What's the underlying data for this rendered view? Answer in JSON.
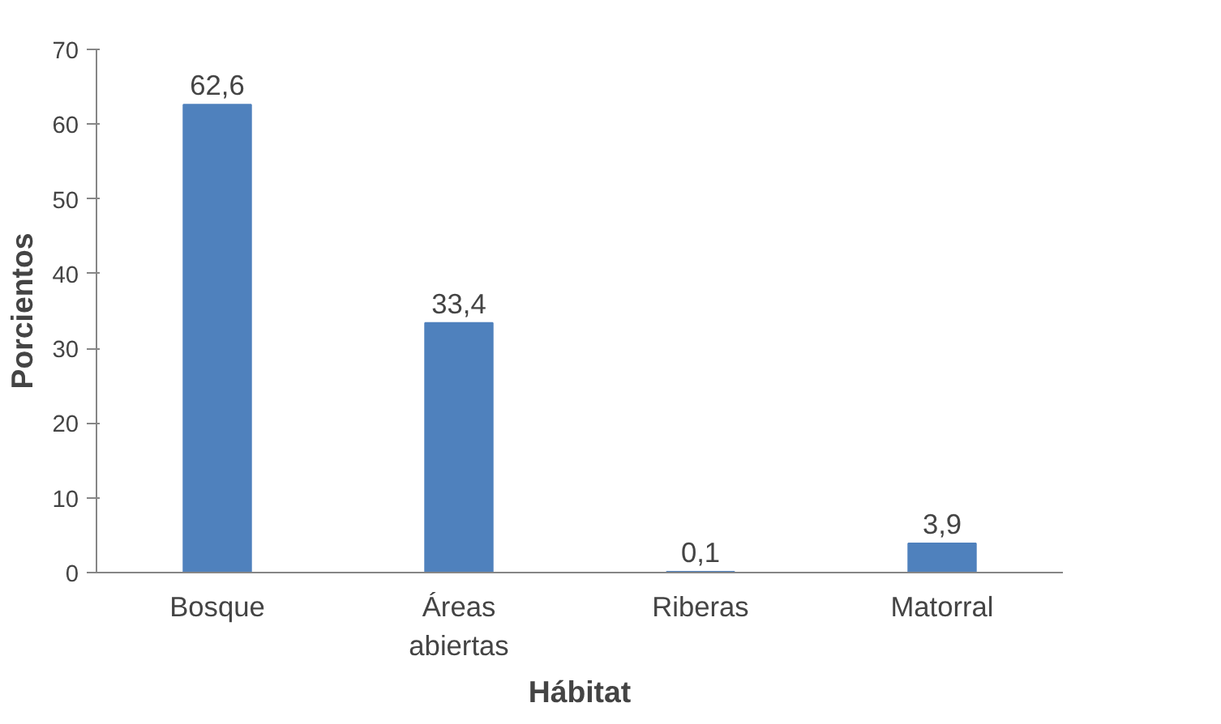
{
  "chart_data": {
    "type": "bar",
    "xlabel": "Hábitat",
    "ylabel": "Porcientos",
    "categories": [
      "Bosque",
      "Áreas abiertas",
      "Riberas",
      "Matorral"
    ],
    "values": [
      62.6,
      33.4,
      0.1,
      3.9
    ],
    "value_labels": [
      "62,6",
      "33,4",
      "0,1",
      "3,9"
    ],
    "color": "#4f81bd",
    "ylim": [
      0,
      70
    ],
    "yticks": [
      0,
      10,
      20,
      30,
      40,
      50,
      60,
      70
    ],
    "grid": false
  }
}
